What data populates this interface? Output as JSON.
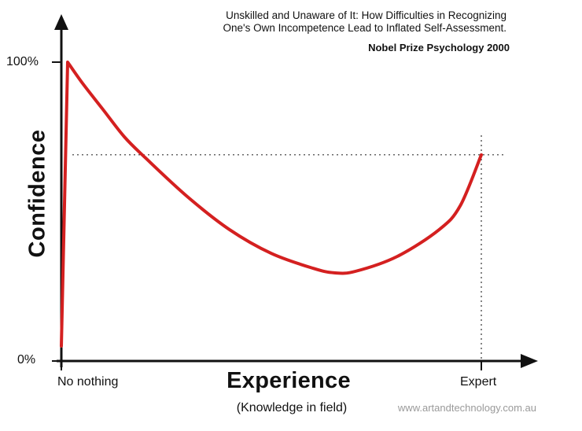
{
  "chart_data": {
    "type": "line",
    "title": "Unskilled and Unaware of It: How Difficulties in Recognizing One's Own Incompetence Lead to Inflated Self-Assessment.",
    "subtitle_lines": [
      "Unskilled and Unaware of It: How Difficulties in Recognizing",
      "One's Own Incompetence Lead to Inflated Self-Assessment."
    ],
    "annotation": "Nobel Prize Psychology  2000",
    "xlabel": "Experience",
    "xlabel_sub": "(Knowledge in field)",
    "ylabel": "Confidence",
    "x_tick_labels": [
      "No nothing",
      "Expert"
    ],
    "y_tick_labels": [
      "100%",
      "0%"
    ],
    "credit": "www.artandtechnology.com.au",
    "xlim": [
      0,
      100
    ],
    "ylim": [
      0,
      100
    ],
    "reference_level": 69,
    "series": [
      {
        "color": "#d42020",
        "x": [
          0,
          1.5,
          5,
          10,
          15,
          20,
          30,
          40,
          50,
          60,
          65,
          70,
          80,
          90,
          95,
          100
        ],
        "y": [
          5,
          100,
          93,
          84,
          75,
          68,
          55,
          44,
          36,
          31,
          29.5,
          30,
          35,
          44,
          52,
          69
        ]
      }
    ],
    "grid": false,
    "legend": "none"
  }
}
